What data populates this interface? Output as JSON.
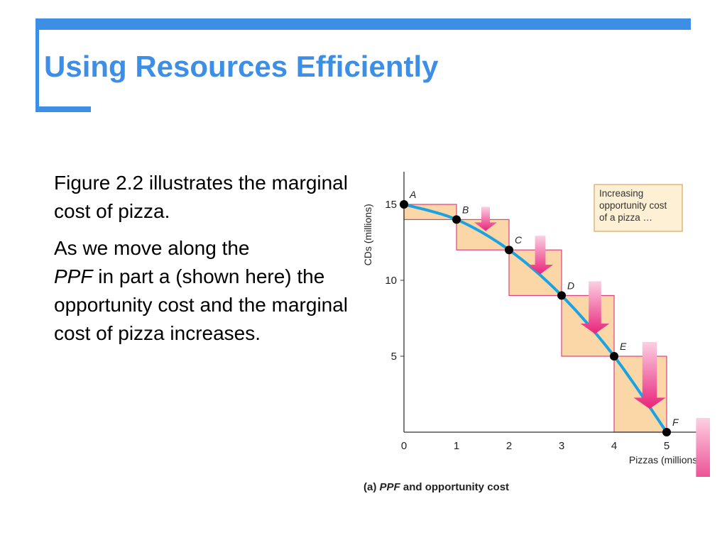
{
  "slide": {
    "title": "Using Resources Efficiently",
    "para1": "Figure 2.2 illustrates the marginal cost of pizza.",
    "para2_start": "As we move along the",
    "para2_ppf": "PPF",
    "para2_end": "in part a (shown here) the opportunity cost and the marginal cost of pizza increases.",
    "caption_prefix": "(a)",
    "caption_ppf": "PPF",
    "caption_rest": "and opportunity cost"
  },
  "colors": {
    "accent": "#3d8fe6",
    "curve": "#1aa3e0",
    "box_fill": "#fbd7a8",
    "box_stroke": "#e0407f",
    "arrow": "#e8247a",
    "note_fill": "#fdf0d5",
    "note_stroke": "#d9a45a"
  },
  "chart_data": {
    "type": "line",
    "xlabel": "Pizzas (millions)",
    "ylabel": "CDs (millions)",
    "xlim": [
      0,
      5
    ],
    "ylim": [
      0,
      16
    ],
    "x_ticks": [
      "0",
      "1",
      "2",
      "3",
      "4",
      "5"
    ],
    "y_ticks": [
      "5",
      "10",
      "15"
    ],
    "points": [
      {
        "label": "A",
        "x": 0,
        "y": 15
      },
      {
        "label": "B",
        "x": 1,
        "y": 14
      },
      {
        "label": "C",
        "x": 2,
        "y": 12
      },
      {
        "label": "D",
        "x": 3,
        "y": 9
      },
      {
        "label": "E",
        "x": 4,
        "y": 5
      },
      {
        "label": "F",
        "x": 5,
        "y": 0
      }
    ],
    "opportunity_cost": [
      1,
      2,
      3,
      4,
      5
    ],
    "annotation": [
      "Increasing",
      "opportunity cost",
      "of a pizza …"
    ]
  }
}
